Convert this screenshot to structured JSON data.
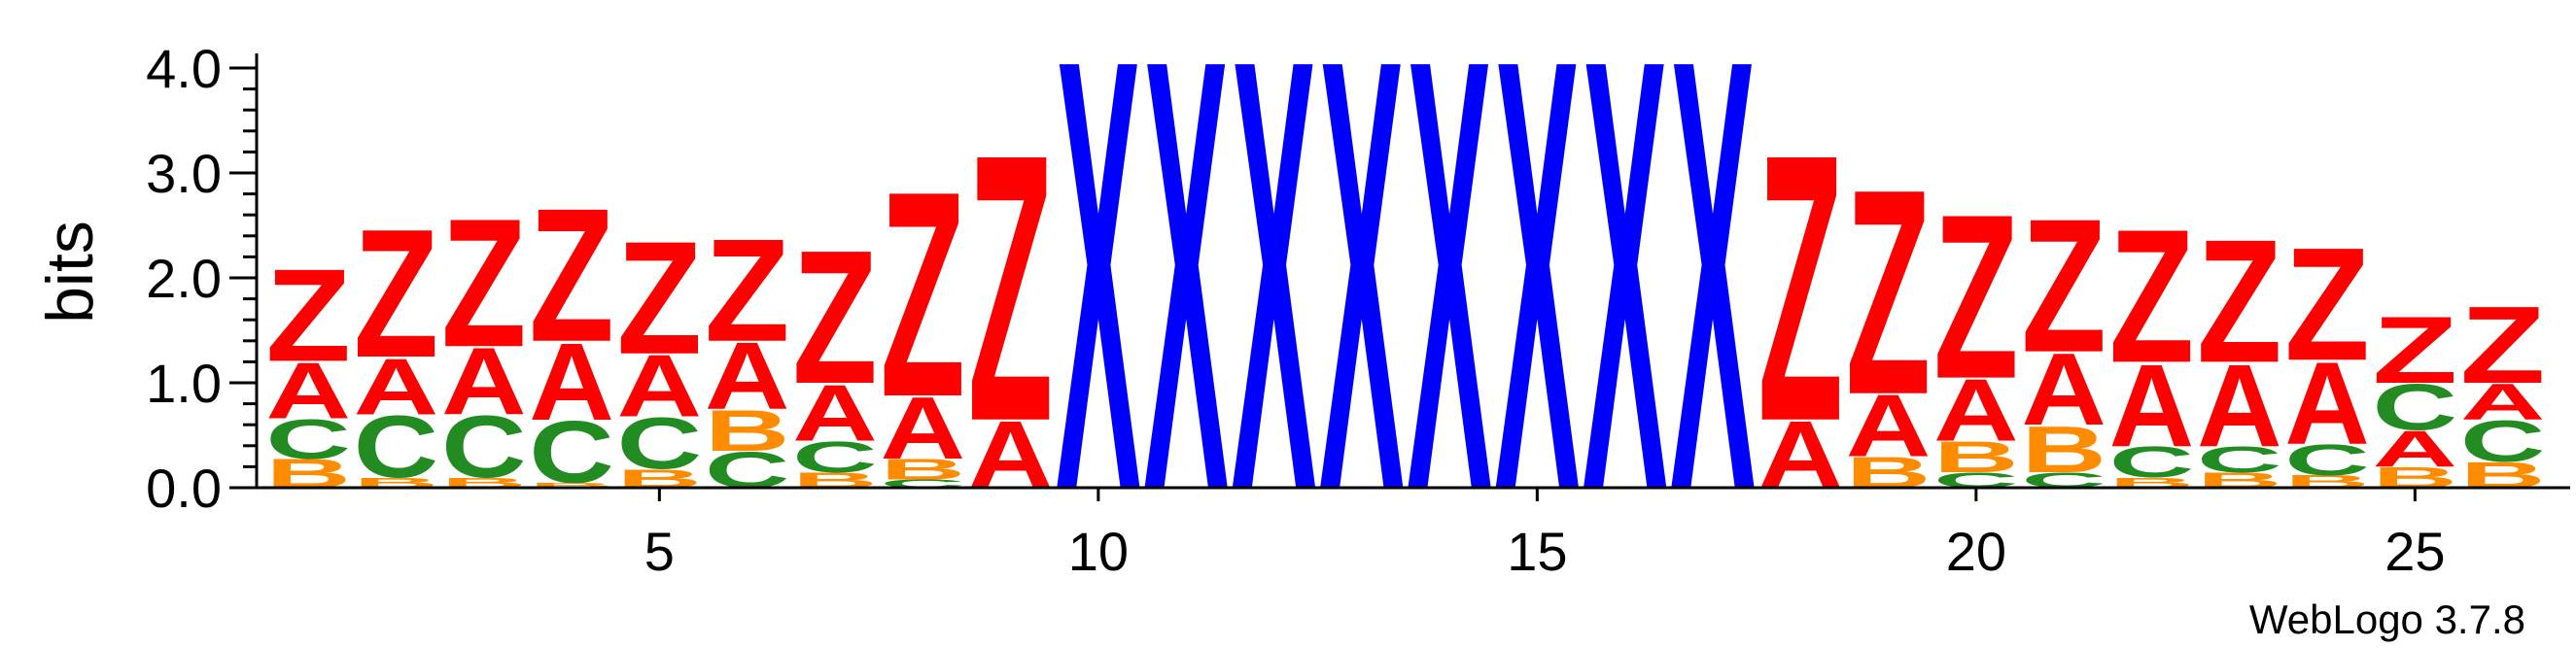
{
  "chart_data": {
    "type": "sequence-logo",
    "ylabel": "bits",
    "ylim": [
      0,
      4.0
    ],
    "y_ticks": [
      "0.0",
      "1.0",
      "2.0",
      "3.0",
      "4.0"
    ],
    "x_ticks": [
      "5",
      "10",
      "15",
      "20",
      "25"
    ],
    "x_tick_positions": [
      5,
      10,
      15,
      20,
      25
    ],
    "credit": "WebLogo 3.7.8",
    "colors": {
      "A": "#ff0000",
      "Z": "#ff0000",
      "X": "#0000ff",
      "C": "#228b22",
      "B": "#ff8c00"
    },
    "positions": [
      {
        "pos": 1,
        "stack": [
          [
            "B",
            0.28
          ],
          [
            "C",
            0.38
          ],
          [
            "A",
            0.55
          ],
          [
            "Z",
            0.9
          ]
        ]
      },
      {
        "pos": 2,
        "stack": [
          [
            "B",
            0.1
          ],
          [
            "C",
            0.6
          ],
          [
            "A",
            0.55
          ],
          [
            "Z",
            1.25
          ]
        ]
      },
      {
        "pos": 3,
        "stack": [
          [
            "B",
            0.1
          ],
          [
            "C",
            0.6
          ],
          [
            "A",
            0.65
          ],
          [
            "Z",
            1.25
          ]
        ]
      },
      {
        "pos": 4,
        "stack": [
          [
            "B",
            0.05
          ],
          [
            "C",
            0.6
          ],
          [
            "A",
            0.75
          ],
          [
            "Z",
            1.3
          ]
        ]
      },
      {
        "pos": 5,
        "stack": [
          [
            "B",
            0.18
          ],
          [
            "C",
            0.5
          ],
          [
            "A",
            0.6
          ],
          [
            "Z",
            1.1
          ]
        ]
      },
      {
        "pos": 6,
        "stack": [
          [
            "C",
            0.35
          ],
          [
            "B",
            0.4
          ],
          [
            "A",
            0.65
          ],
          [
            "Z",
            1.0
          ]
        ]
      },
      {
        "pos": 7,
        "stack": [
          [
            "B",
            0.15
          ],
          [
            "C",
            0.3
          ],
          [
            "A",
            0.55
          ],
          [
            "Z",
            1.3
          ]
        ]
      },
      {
        "pos": 8,
        "stack": [
          [
            "C",
            0.08
          ],
          [
            "B",
            0.2
          ],
          [
            "A",
            0.6
          ],
          [
            "Z",
            2.0
          ]
        ]
      },
      {
        "pos": 9,
        "stack": [
          [
            "A",
            0.65
          ],
          [
            "Z",
            2.6
          ]
        ]
      },
      {
        "pos": 10,
        "stack": [
          [
            "X",
            4.2
          ]
        ]
      },
      {
        "pos": 11,
        "stack": [
          [
            "X",
            4.2
          ]
        ]
      },
      {
        "pos": 12,
        "stack": [
          [
            "X",
            4.2
          ]
        ]
      },
      {
        "pos": 13,
        "stack": [
          [
            "X",
            4.2
          ]
        ]
      },
      {
        "pos": 14,
        "stack": [
          [
            "X",
            4.2
          ]
        ]
      },
      {
        "pos": 15,
        "stack": [
          [
            "X",
            4.2
          ]
        ]
      },
      {
        "pos": 16,
        "stack": [
          [
            "X",
            4.2
          ]
        ]
      },
      {
        "pos": 17,
        "stack": [
          [
            "X",
            4.2
          ]
        ]
      },
      {
        "pos": 18,
        "stack": [
          [
            "A",
            0.65
          ],
          [
            "Z",
            2.6
          ]
        ]
      },
      {
        "pos": 19,
        "stack": [
          [
            "B",
            0.3
          ],
          [
            "A",
            0.6
          ],
          [
            "Z",
            2.0
          ]
        ]
      },
      {
        "pos": 20,
        "stack": [
          [
            "C",
            0.15
          ],
          [
            "B",
            0.3
          ],
          [
            "A",
            0.6
          ],
          [
            "Z",
            1.6
          ]
        ]
      },
      {
        "pos": 21,
        "stack": [
          [
            "C",
            0.15
          ],
          [
            "B",
            0.45
          ],
          [
            "A",
            0.7
          ],
          [
            "Z",
            1.3
          ]
        ]
      },
      {
        "pos": 22,
        "stack": [
          [
            "B",
            0.1
          ],
          [
            "C",
            0.3
          ],
          [
            "A",
            0.8
          ],
          [
            "Z",
            1.3
          ]
        ]
      },
      {
        "pos": 23,
        "stack": [
          [
            "B",
            0.15
          ],
          [
            "C",
            0.25
          ],
          [
            "A",
            0.8
          ],
          [
            "Z",
            1.2
          ]
        ]
      },
      {
        "pos": 24,
        "stack": [
          [
            "B",
            0.12
          ],
          [
            "C",
            0.3
          ],
          [
            "A",
            0.8
          ],
          [
            "Z",
            1.1
          ]
        ]
      },
      {
        "pos": 25,
        "stack": [
          [
            "B",
            0.2
          ],
          [
            "A",
            0.35
          ],
          [
            "C",
            0.45
          ],
          [
            "Z",
            0.65
          ]
        ]
      },
      {
        "pos": 26,
        "stack": [
          [
            "B",
            0.25
          ],
          [
            "C",
            0.4
          ],
          [
            "A",
            0.35
          ],
          [
            "Z",
            0.75
          ]
        ]
      }
    ]
  }
}
